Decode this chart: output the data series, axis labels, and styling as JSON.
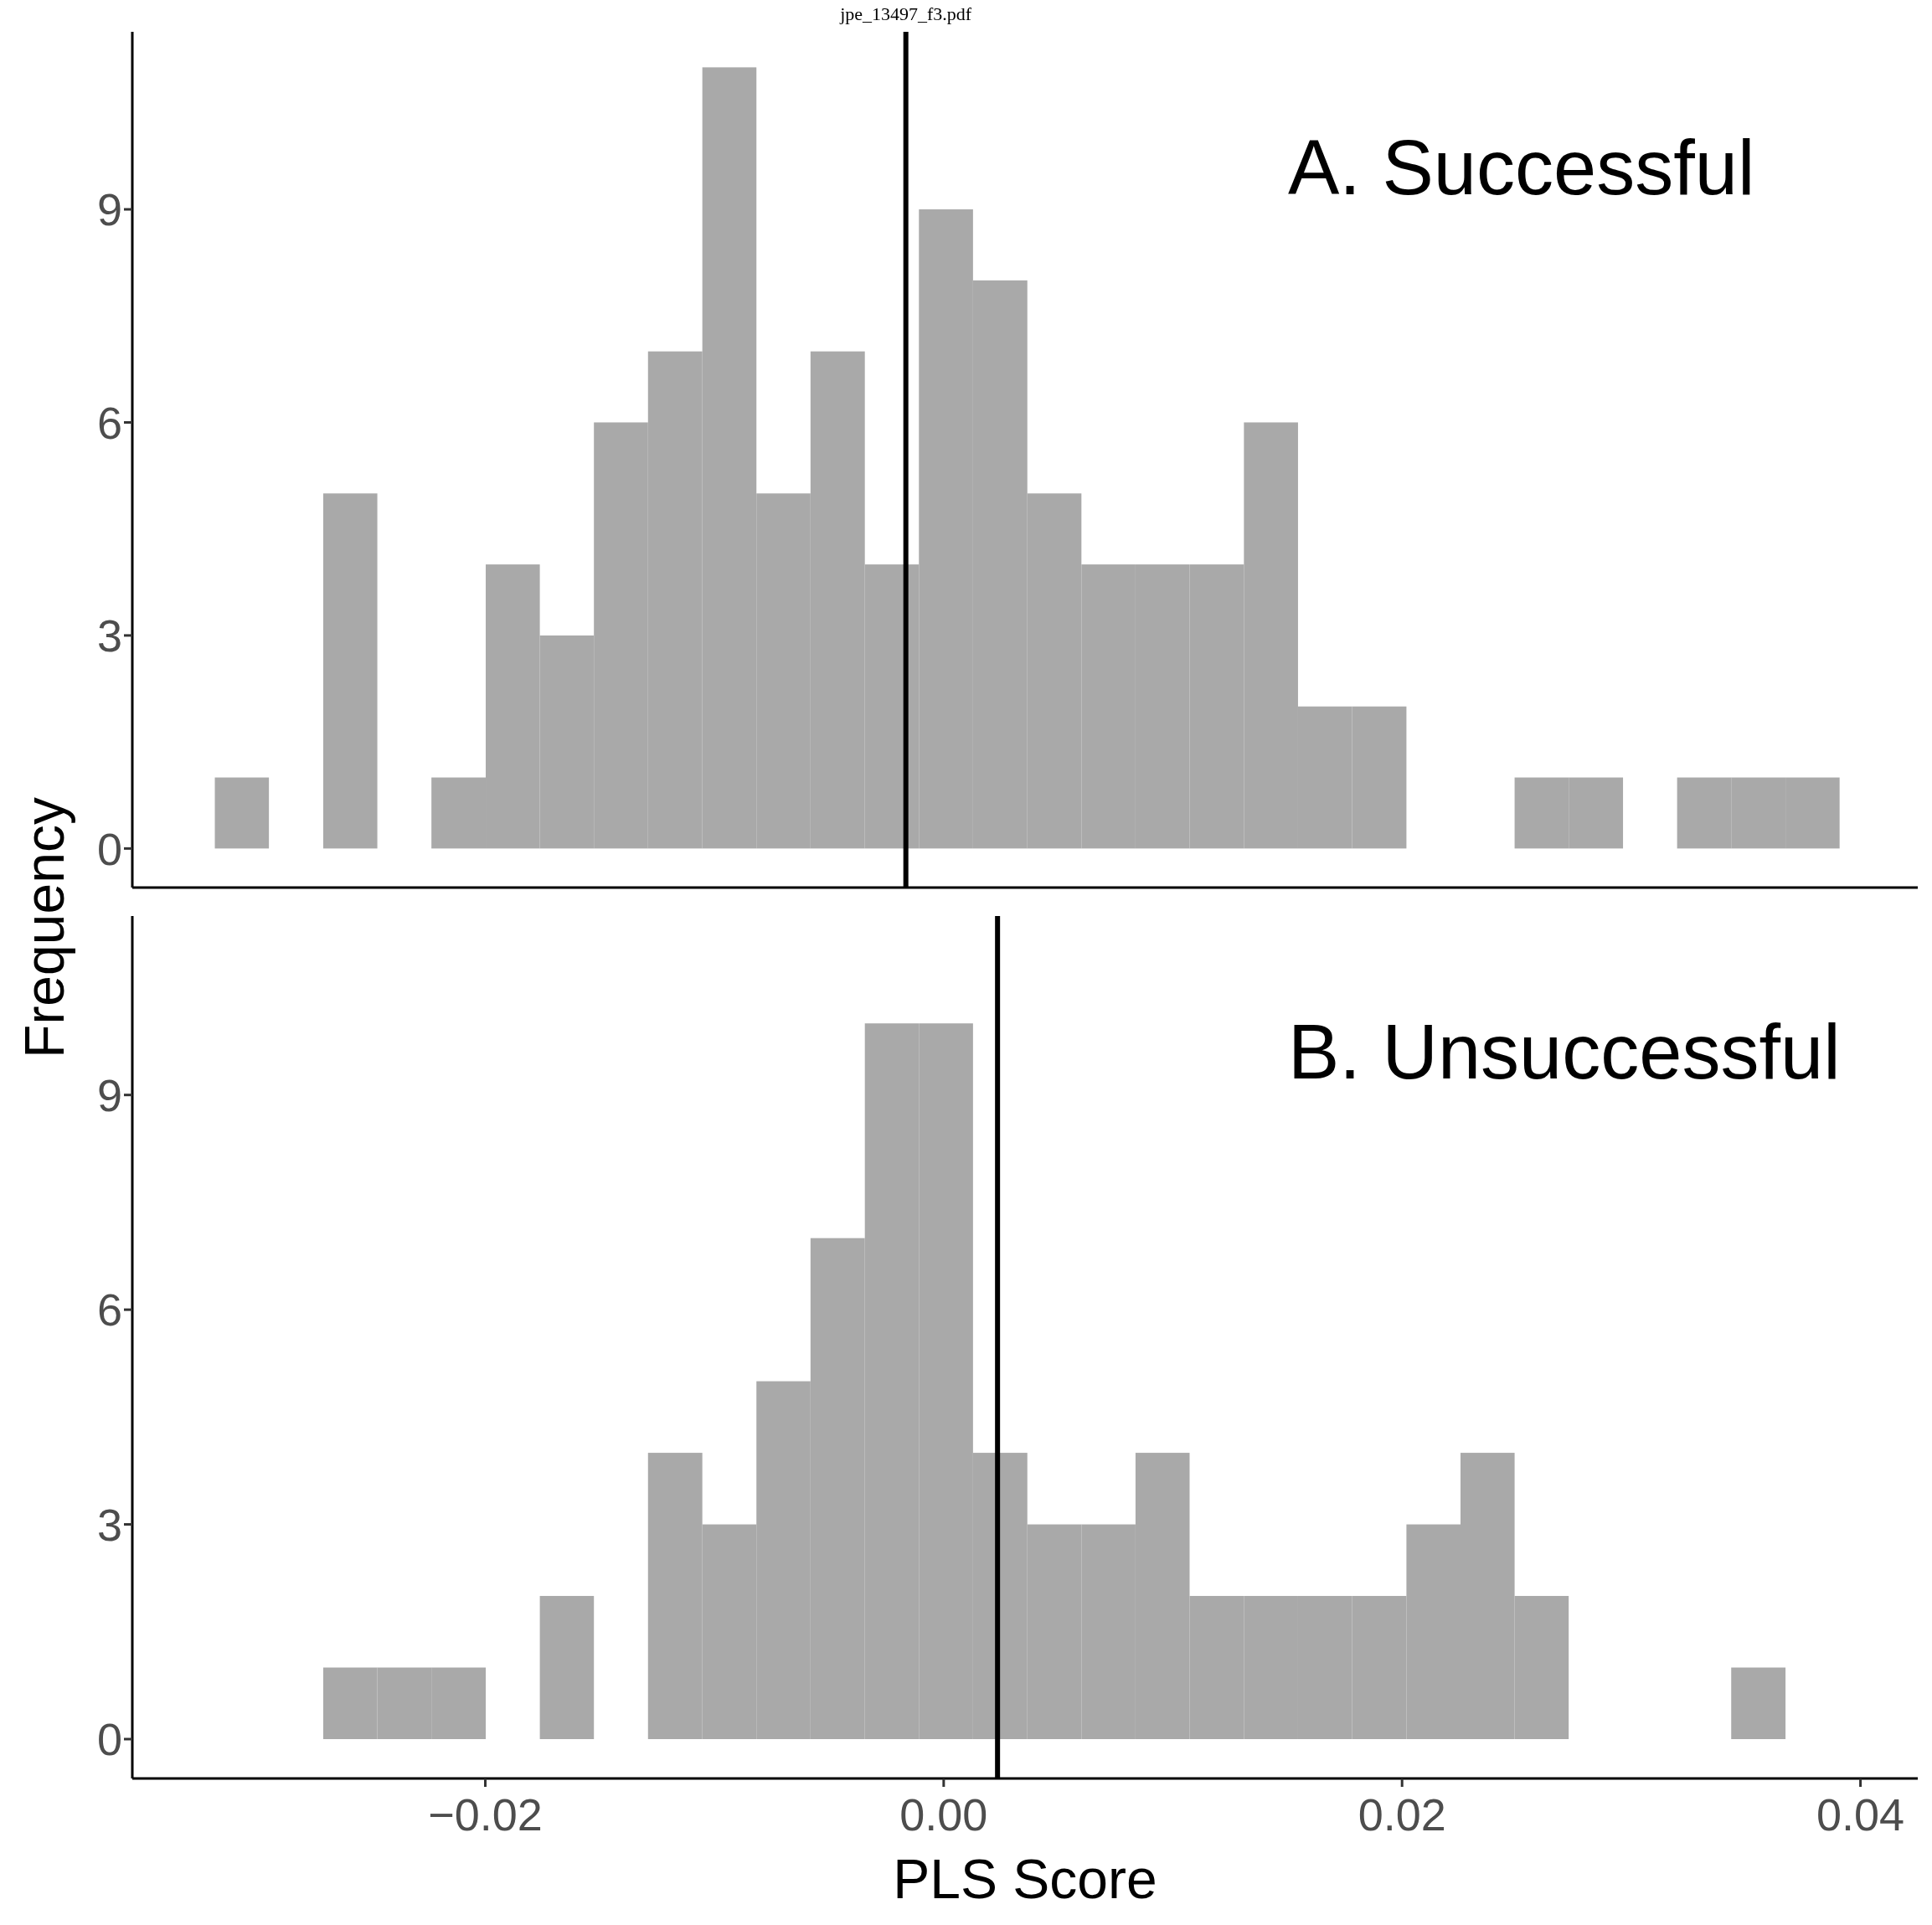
{
  "chart_data": [
    {
      "type": "histogram",
      "ylabel": "Frequency",
      "annotations": [
        "jpe_13497_f3.pdf",
        "A. Successful"
      ],
      "bins": [
        -0.0318,
        -0.02944,
        -0.02707,
        -0.02471,
        -0.02235,
        -0.01998,
        -0.01762,
        -0.01526,
        -0.0129,
        -0.01053,
        -0.00817,
        -0.00581,
        -0.00344,
        -0.00108,
        0.00128,
        0.00365,
        0.00601,
        0.00837,
        0.01073,
        0.0131,
        0.01546,
        0.01782,
        0.02019,
        0.02255,
        0.02491,
        0.02727,
        0.02964,
        0.032,
        0.03436,
        0.03673,
        0.03909
      ],
      "values": [
        1,
        0,
        5,
        0,
        1,
        4,
        3,
        6,
        7,
        11,
        5,
        7,
        4,
        9,
        8,
        5,
        4,
        4,
        4,
        6,
        2,
        2,
        0,
        0,
        1,
        1,
        0,
        1,
        1,
        1
      ],
      "color": "#a9a9a9",
      "xlim": [
        -0.0354,
        0.0425
      ],
      "ylim": [
        -0.55,
        11.5
      ],
      "yticks": [
        0,
        3,
        6,
        9
      ],
      "tick_labels": "y",
      "ref_lines": [
        {
          "axis": "x",
          "value": -0.00165,
          "color": "#000000"
        }
      ]
    },
    {
      "type": "histogram",
      "xlabel": "PLS Score",
      "annotations": [
        "B. Unsuccessful"
      ],
      "bins": [
        -0.0318,
        -0.02944,
        -0.02707,
        -0.02471,
        -0.02235,
        -0.01998,
        -0.01762,
        -0.01526,
        -0.0129,
        -0.01053,
        -0.00817,
        -0.00581,
        -0.00344,
        -0.00108,
        0.00128,
        0.00365,
        0.00601,
        0.00837,
        0.01073,
        0.0131,
        0.01546,
        0.01782,
        0.02019,
        0.02255,
        0.02491,
        0.02727,
        0.02964,
        0.032,
        0.03436,
        0.03673,
        0.03909
      ],
      "values": [
        0,
        0,
        1,
        1,
        1,
        0,
        2,
        0,
        4,
        3,
        5,
        7,
        10,
        10,
        4,
        3,
        3,
        4,
        2,
        2,
        2,
        2,
        3,
        4,
        2,
        0,
        0,
        0,
        1,
        0
      ],
      "color": "#a9a9a9",
      "xlim": [
        -0.0354,
        0.0425
      ],
      "xticks": [
        {
          "value": -0.02,
          "label": "−0.02"
        },
        {
          "value": 0,
          "label": "0.00"
        },
        {
          "value": 0.02,
          "label": "0.02"
        },
        {
          "value": 0.04,
          "label": "0.04"
        }
      ],
      "ylim": [
        -0.55,
        11.5
      ],
      "yticks": [
        0,
        3,
        6,
        9
      ],
      "ref_lines": [
        {
          "axis": "x",
          "value": 0.00235,
          "color": "#000000"
        }
      ]
    }
  ]
}
